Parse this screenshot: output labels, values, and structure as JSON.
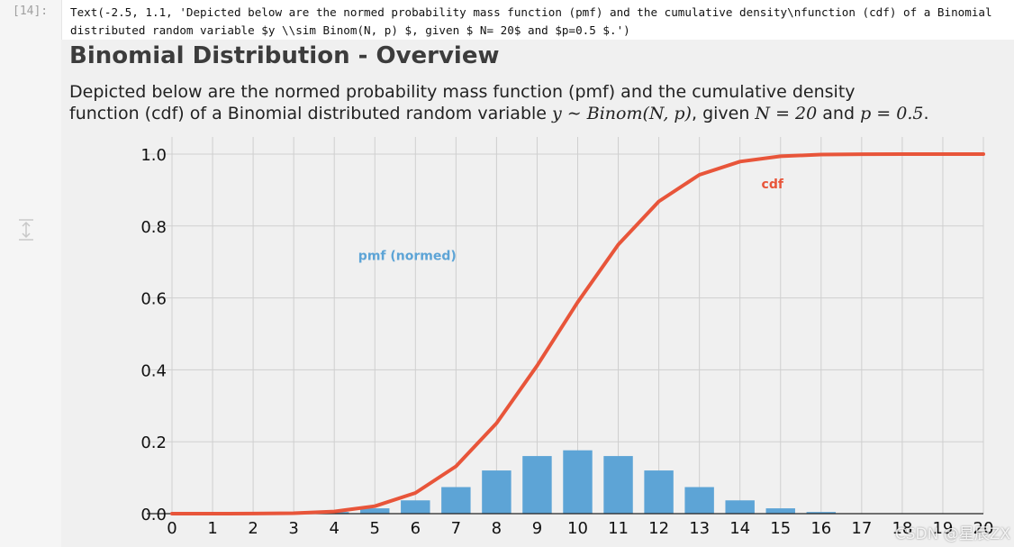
{
  "cell": {
    "prompt": "[14]:",
    "output_text": "Text(-2.5, 1.1, 'Depicted below are the normed probability mass function (pmf) and the cumulative density\\nfunction (cdf) of a Binomial distributed random variable $y \\\\sim Binom(N, p) $, given $ N= 20$ and $p=0.5 $.')"
  },
  "figure": {
    "title": "Binomial Distribution - Overview",
    "subtitle_line1": "Depicted below are the normed probability mass function (pmf) and the cumulative density",
    "subtitle_pre": "function (cdf) of a Binomial distributed random variable ",
    "subtitle_math1": "y ∼ Binom(N, p)",
    "subtitle_mid": ", given ",
    "subtitle_math2": "N = 20",
    "subtitle_and": " and ",
    "subtitle_math3": "p = 0.5",
    "subtitle_end": "."
  },
  "chart_data": {
    "type": "bar",
    "x": [
      0,
      1,
      2,
      3,
      4,
      5,
      6,
      7,
      8,
      9,
      10,
      11,
      12,
      13,
      14,
      15,
      16,
      17,
      18,
      19,
      20
    ],
    "series": [
      {
        "name": "pmf (normed)",
        "type": "bar",
        "color": "#5da4d6",
        "values": [
          0.0,
          0.0,
          0.0002,
          0.0011,
          0.0046,
          0.0148,
          0.037,
          0.0739,
          0.1201,
          0.1602,
          0.1762,
          0.1602,
          0.1201,
          0.0739,
          0.037,
          0.0148,
          0.0046,
          0.0011,
          0.0002,
          0.0,
          0.0
        ]
      },
      {
        "name": "cdf",
        "type": "line",
        "color": "#e8553a",
        "values": [
          0.0,
          0.0,
          0.0002,
          0.0013,
          0.0059,
          0.0207,
          0.0577,
          0.1316,
          0.2517,
          0.4119,
          0.5881,
          0.7483,
          0.8684,
          0.9423,
          0.9793,
          0.9941,
          0.9987,
          0.9998,
          1.0,
          1.0,
          1.0
        ]
      }
    ],
    "xlim": [
      0,
      20
    ],
    "ylim": [
      0,
      1.0
    ],
    "yticks": [
      "0.0",
      "0.2",
      "0.4",
      "0.6",
      "0.8",
      "1.0"
    ],
    "xticks": [
      "0",
      "1",
      "2",
      "3",
      "4",
      "5",
      "6",
      "7",
      "8",
      "9",
      "10",
      "11",
      "12",
      "13",
      "14",
      "15",
      "16",
      "17",
      "18",
      "19",
      "20"
    ],
    "grid": true,
    "annotations": [
      {
        "text": "pmf (normed)",
        "x": 5.8,
        "y": 0.705,
        "color": "#5da4d6"
      },
      {
        "text": "cdf",
        "x": 14.8,
        "y": 0.905,
        "color": "#e8553a"
      }
    ]
  },
  "watermark": "CSDN @星辰ZX"
}
